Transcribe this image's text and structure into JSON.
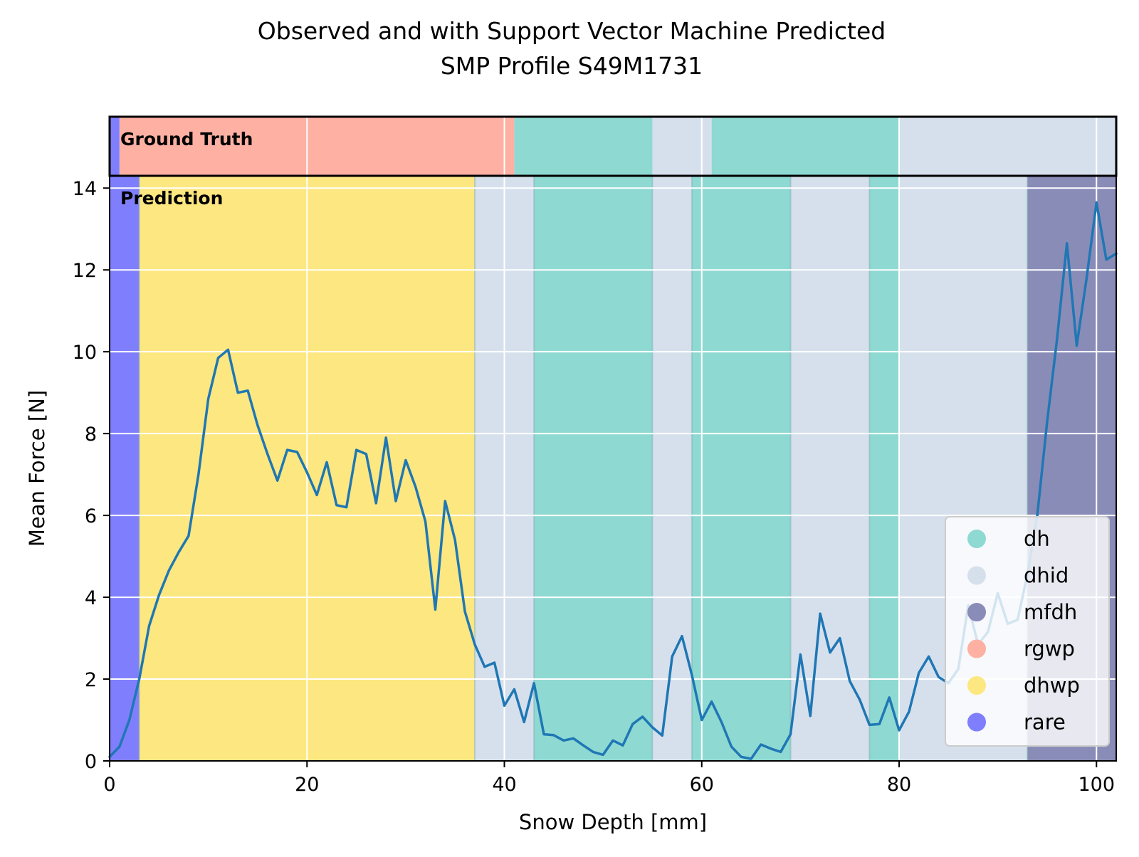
{
  "chart_data": {
    "type": "line",
    "title_line1": "Observed and with Support Vector Machine Predicted",
    "title_line2": "SMP Profile S49M1731",
    "xlabel": "Snow Depth [mm]",
    "ylabel": "Mean Force [N]",
    "xlim": [
      0,
      102
    ],
    "ylim": [
      0,
      14.3
    ],
    "xticks": [
      0,
      20,
      40,
      60,
      80,
      100
    ],
    "yticks": [
      0,
      2,
      4,
      6,
      8,
      10,
      12,
      14
    ],
    "grid": true,
    "legend_position": "lower-right",
    "ground_truth_label": "Ground Truth",
    "prediction_label": "Prediction",
    "classes": [
      {
        "name": "dh",
        "color": "#8fd9d3"
      },
      {
        "name": "dhid",
        "color": "#d6e0ed"
      },
      {
        "name": "mfdh",
        "color": "#8a8cb8"
      },
      {
        "name": "rgwp",
        "color": "#feb0a3"
      },
      {
        "name": "dhwp",
        "color": "#fde780"
      },
      {
        "name": "rare",
        "color": "#7f7ffd"
      }
    ],
    "ground_truth_segments": [
      {
        "label": "rare",
        "start": 0,
        "end": 1
      },
      {
        "label": "rgwp",
        "start": 1,
        "end": 41
      },
      {
        "label": "dh",
        "start": 41,
        "end": 55
      },
      {
        "label": "dhid",
        "start": 55,
        "end": 61
      },
      {
        "label": "dh",
        "start": 61,
        "end": 80
      },
      {
        "label": "dhid",
        "start": 80,
        "end": 102
      }
    ],
    "prediction_segments": [
      {
        "label": "rare",
        "start": 0,
        "end": 3
      },
      {
        "label": "dhwp",
        "start": 3,
        "end": 37
      },
      {
        "label": "dhid",
        "start": 37,
        "end": 43
      },
      {
        "label": "dh",
        "start": 43,
        "end": 55
      },
      {
        "label": "dhid",
        "start": 55,
        "end": 59
      },
      {
        "label": "dh",
        "start": 59,
        "end": 69
      },
      {
        "label": "dhid",
        "start": 69,
        "end": 77
      },
      {
        "label": "dh",
        "start": 77,
        "end": 80
      },
      {
        "label": "dhid",
        "start": 80,
        "end": 93
      },
      {
        "label": "mfdh",
        "start": 93,
        "end": 102
      }
    ],
    "series": [
      {
        "color": "#1f77b4",
        "x": [
          0,
          1,
          2,
          3,
          4,
          5,
          6,
          7,
          8,
          9,
          10,
          11,
          12,
          13,
          14,
          15,
          16,
          17,
          18,
          19,
          20,
          21,
          22,
          23,
          24,
          25,
          26,
          27,
          28,
          29,
          30,
          31,
          32,
          33,
          34,
          35,
          36,
          37,
          38,
          39,
          40,
          41,
          42,
          43,
          44,
          45,
          46,
          47,
          48,
          49,
          50,
          51,
          52,
          53,
          54,
          55,
          56,
          57,
          58,
          59,
          60,
          61,
          62,
          63,
          64,
          65,
          66,
          67,
          68,
          69,
          70,
          71,
          72,
          73,
          74,
          75,
          76,
          77,
          78,
          79,
          80,
          81,
          82,
          83,
          84,
          85,
          86,
          87,
          88,
          89,
          90,
          91,
          92,
          93,
          94,
          95,
          96,
          97,
          98,
          99,
          100,
          101,
          102
        ],
        "y": [
          0.1,
          0.35,
          1.0,
          2.0,
          3.3,
          4.05,
          4.65,
          5.1,
          5.5,
          7.0,
          8.85,
          9.85,
          10.05,
          9.0,
          9.05,
          8.2,
          7.5,
          6.85,
          7.6,
          7.55,
          7.05,
          6.5,
          7.3,
          6.25,
          6.2,
          7.6,
          7.5,
          6.3,
          7.9,
          6.35,
          7.35,
          6.7,
          5.85,
          3.7,
          6.35,
          5.4,
          3.65,
          2.85,
          2.3,
          2.4,
          1.35,
          1.75,
          0.95,
          1.9,
          0.65,
          0.63,
          0.5,
          0.55,
          0.38,
          0.22,
          0.15,
          0.5,
          0.38,
          0.9,
          1.08,
          0.82,
          0.62,
          2.55,
          3.05,
          2.1,
          1.0,
          1.45,
          0.95,
          0.35,
          0.1,
          0.05,
          0.4,
          0.3,
          0.22,
          0.65,
          2.6,
          1.1,
          3.6,
          2.65,
          3.0,
          1.95,
          1.5,
          0.88,
          0.9,
          1.55,
          0.75,
          1.2,
          2.15,
          2.55,
          2.05,
          1.9,
          2.25,
          3.8,
          2.85,
          3.15,
          4.1,
          3.35,
          3.45,
          4.55,
          6.0,
          8.3,
          10.3,
          12.65,
          10.15,
          11.8,
          13.65,
          12.25,
          12.4
        ]
      }
    ]
  }
}
